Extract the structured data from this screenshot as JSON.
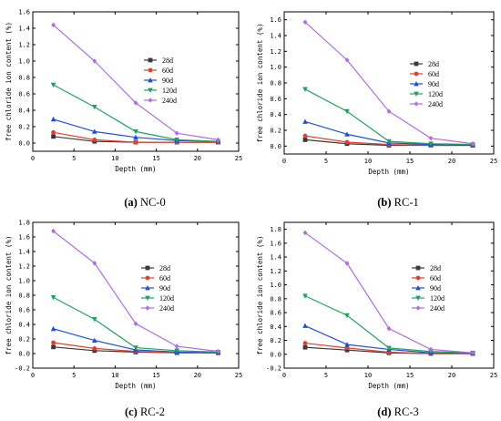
{
  "chart_data": [
    {
      "type": "line",
      "caption_letter": "(a)",
      "caption_name": "NC-0",
      "xlabel": "Depth (mm)",
      "ylabel": "free chloride ion content (%)",
      "xlim": [
        0,
        25
      ],
      "ylim": [
        -0.1,
        1.6
      ],
      "xticks": [
        0,
        5,
        10,
        15,
        20,
        25
      ],
      "yticks": [
        0.0,
        0.2,
        0.4,
        0.6,
        0.8,
        1.0,
        1.2,
        1.4,
        1.6
      ],
      "ytick_labels": [
        "0.0",
        "0.2",
        "0.4",
        "0.6",
        "0.8",
        "1.0",
        "1.2",
        "1.4",
        "1.6"
      ],
      "legend_position": "center-right",
      "x": [
        2.5,
        7.5,
        12.5,
        17.5,
        22.5
      ],
      "series": [
        {
          "name": "28d",
          "values": [
            0.08,
            0.02,
            0.01,
            0.01,
            0.01
          ]
        },
        {
          "name": "60d",
          "values": [
            0.13,
            0.04,
            0.01,
            0.01,
            0.01
          ]
        },
        {
          "name": "90d",
          "values": [
            0.29,
            0.14,
            0.07,
            0.03,
            0.02
          ]
        },
        {
          "name": "120d",
          "values": [
            0.71,
            0.44,
            0.14,
            0.04,
            0.02
          ]
        },
        {
          "name": "240d",
          "values": [
            1.44,
            1.0,
            0.49,
            0.12,
            0.04
          ]
        }
      ]
    },
    {
      "type": "line",
      "caption_letter": "(b)",
      "caption_name": "RC-1",
      "xlabel": "Depth (mm)",
      "ylabel": "free chloride ion content (%)",
      "xlim": [
        0,
        25
      ],
      "ylim": [
        -0.1,
        1.7
      ],
      "xticks": [
        0,
        5,
        10,
        15,
        20,
        25
      ],
      "yticks": [
        0.0,
        0.2,
        0.4,
        0.6,
        0.8,
        1.0,
        1.2,
        1.4,
        1.6
      ],
      "ytick_labels": [
        "0.0",
        "0.2",
        "0.4",
        "0.6",
        "0.8",
        "1.0",
        "1.2",
        "1.4",
        "1.6"
      ],
      "legend_position": "center-right",
      "x": [
        2.5,
        7.5,
        12.5,
        17.5,
        22.5
      ],
      "series": [
        {
          "name": "28d",
          "values": [
            0.08,
            0.03,
            0.01,
            0.01,
            0.01
          ]
        },
        {
          "name": "60d",
          "values": [
            0.13,
            0.05,
            0.02,
            0.01,
            0.01
          ]
        },
        {
          "name": "90d",
          "values": [
            0.31,
            0.15,
            0.04,
            0.02,
            0.01
          ]
        },
        {
          "name": "120d",
          "values": [
            0.72,
            0.44,
            0.06,
            0.03,
            0.02
          ]
        },
        {
          "name": "240d",
          "values": [
            1.57,
            1.09,
            0.44,
            0.1,
            0.03
          ]
        }
      ]
    },
    {
      "type": "line",
      "caption_letter": "(c)",
      "caption_name": "RC-2",
      "xlabel": "Depth (mm)",
      "ylabel": "free chloride ion content (%)",
      "xlim": [
        0,
        25
      ],
      "ylim": [
        -0.2,
        1.8
      ],
      "xticks": [
        0,
        5,
        10,
        15,
        20,
        25
      ],
      "yticks": [
        -0.2,
        0.0,
        0.2,
        0.4,
        0.6,
        0.8,
        1.0,
        1.2,
        1.4,
        1.6,
        1.8
      ],
      "ytick_labels": [
        "-0.2",
        "0.0",
        "0.2",
        "0.4",
        "0.6",
        "0.8",
        "1.0",
        "1.2",
        "1.4",
        "1.6",
        "1.8"
      ],
      "legend_position": "center-right",
      "x": [
        2.5,
        7.5,
        12.5,
        17.5,
        22.5
      ],
      "series": [
        {
          "name": "28d",
          "values": [
            0.09,
            0.04,
            0.02,
            0.01,
            0.01
          ]
        },
        {
          "name": "60d",
          "values": [
            0.15,
            0.07,
            0.03,
            0.01,
            0.01
          ]
        },
        {
          "name": "90d",
          "values": [
            0.34,
            0.18,
            0.05,
            0.02,
            0.01
          ]
        },
        {
          "name": "120d",
          "values": [
            0.77,
            0.47,
            0.08,
            0.04,
            0.02
          ]
        },
        {
          "name": "240d",
          "values": [
            1.68,
            1.24,
            0.41,
            0.1,
            0.03
          ]
        }
      ]
    },
    {
      "type": "line",
      "caption_letter": "(d)",
      "caption_name": "RC-3",
      "xlabel": "Depth (mm)",
      "ylabel": "free chloride ion content (%)",
      "xlim": [
        0,
        25
      ],
      "ylim": [
        -0.2,
        1.9
      ],
      "xticks": [
        0,
        5,
        10,
        15,
        20,
        25
      ],
      "yticks": [
        -0.2,
        0.0,
        0.2,
        0.4,
        0.6,
        0.8,
        1.0,
        1.2,
        1.4,
        1.6,
        1.8
      ],
      "ytick_labels": [
        "-0.2",
        "0.0",
        "0.2",
        "0.4",
        "0.6",
        "0.8",
        "1.0",
        "1.2",
        "1.4",
        "1.6",
        "1.8"
      ],
      "legend_position": "center-right",
      "x": [
        2.5,
        7.5,
        12.5,
        17.5,
        22.5
      ],
      "series": [
        {
          "name": "28d",
          "values": [
            0.1,
            0.06,
            0.02,
            0.01,
            0.01
          ]
        },
        {
          "name": "60d",
          "values": [
            0.16,
            0.09,
            0.03,
            0.01,
            0.01
          ]
        },
        {
          "name": "90d",
          "values": [
            0.41,
            0.14,
            0.07,
            0.02,
            0.01
          ]
        },
        {
          "name": "120d",
          "values": [
            0.84,
            0.56,
            0.09,
            0.04,
            0.02
          ]
        },
        {
          "name": "240d",
          "values": [
            1.75,
            1.31,
            0.37,
            0.07,
            0.02
          ]
        }
      ]
    }
  ],
  "series_style": [
    {
      "color": "#3a3a3a",
      "marker": "square"
    },
    {
      "color": "#e0412c",
      "marker": "circle"
    },
    {
      "color": "#1f4fd6",
      "marker": "triangle-up"
    },
    {
      "color": "#1fa35a",
      "marker": "triangle-down"
    },
    {
      "color": "#b06ce0",
      "marker": "diamond"
    }
  ]
}
